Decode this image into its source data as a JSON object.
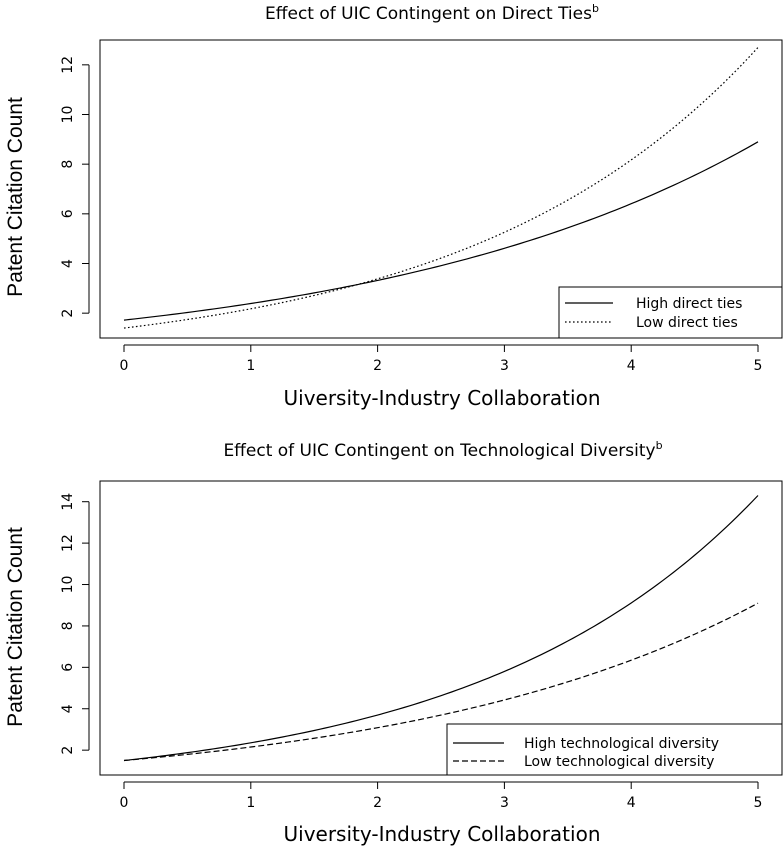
{
  "chart_data": [
    {
      "type": "line",
      "title": "Effect of UIC Contingent on Direct Ties",
      "title_superscript": "b",
      "xlabel": "Uiversity-Industry Collaboration",
      "ylabel": "Patent Citation Count",
      "xlim": [
        0,
        5
      ],
      "ylim": [
        1.0,
        13.0
      ],
      "xticks": [
        0,
        1,
        2,
        3,
        4,
        5
      ],
      "yticks": [
        2,
        4,
        6,
        8,
        10,
        12
      ],
      "grid": false,
      "legend_position": "bottom-right",
      "series": [
        {
          "name": "High direct ties",
          "line_style": "solid",
          "start": 1.72,
          "end": 8.9,
          "x": [
            0,
            1,
            2,
            3,
            4,
            5
          ],
          "values": [
            1.72,
            2.32,
            3.24,
            4.6,
            6.45,
            8.9
          ]
        },
        {
          "name": "Low direct ties",
          "line_style": "dotted",
          "start": 1.4,
          "end": 12.7,
          "x": [
            0,
            1,
            2,
            3,
            4,
            5
          ],
          "values": [
            1.4,
            2.17,
            3.3,
            5.25,
            8.3,
            12.7
          ]
        }
      ]
    },
    {
      "type": "line",
      "title": "Effect of UIC Contingent on Technological Diversity",
      "title_superscript": "b",
      "xlabel": "Uiversity-Industry Collaboration",
      "ylabel": "Patent Citation Count",
      "xlim": [
        0,
        5
      ],
      "ylim": [
        0.8,
        15.0
      ],
      "xticks": [
        0,
        1,
        2,
        3,
        4,
        5
      ],
      "yticks": [
        2,
        4,
        6,
        8,
        10,
        12,
        14
      ],
      "grid": false,
      "legend_position": "bottom-right",
      "series": [
        {
          "name": "High technological diversity",
          "line_style": "solid",
          "start": 1.5,
          "end": 14.3,
          "x": [
            0,
            1,
            2,
            3,
            4,
            5
          ],
          "values": [
            1.5,
            2.3,
            3.6,
            5.7,
            9.0,
            14.3
          ]
        },
        {
          "name": "Low technological diversity",
          "line_style": "dashed",
          "start": 1.5,
          "end": 9.1,
          "x": [
            0,
            1,
            2,
            3,
            4,
            5
          ],
          "values": [
            1.5,
            2.15,
            3.1,
            4.4,
            6.3,
            9.1
          ]
        }
      ]
    }
  ]
}
